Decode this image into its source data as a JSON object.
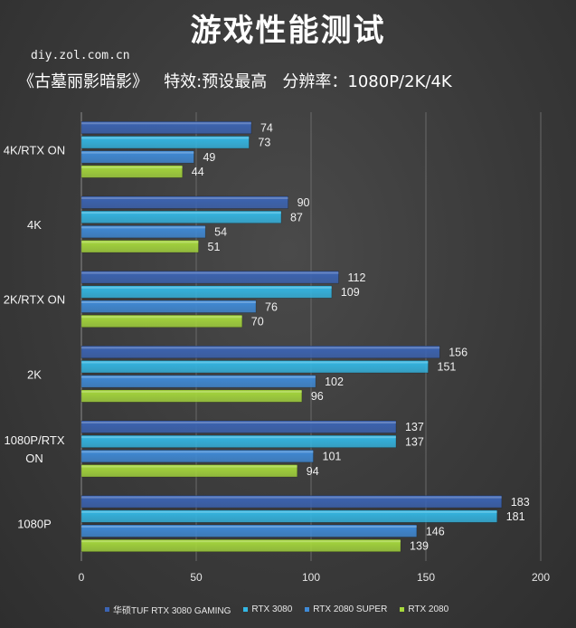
{
  "title": "游戏性能测试",
  "source": "diy.zol.com.cn",
  "subtitle": "《古墓丽影暗影》   特效:预设最高   分辨率：1080P/2K/4K",
  "chart_data": {
    "type": "bar",
    "orientation": "horizontal",
    "categories": [
      "4K/RTX ON",
      "4K",
      "2K/RTX ON",
      "2K",
      "1080P/RTX ON",
      "1080P"
    ],
    "series": [
      {
        "name": "华硕TUF RTX 3080 GAMING",
        "color": "#3b64b4",
        "values": [
          74,
          90,
          112,
          156,
          137,
          183
        ]
      },
      {
        "name": "RTX 3080",
        "color": "#33b7e4",
        "values": [
          73,
          87,
          109,
          151,
          137,
          181
        ]
      },
      {
        "name": "RTX 2080 SUPER",
        "color": "#3f8bd8",
        "values": [
          49,
          54,
          76,
          102,
          101,
          146
        ]
      },
      {
        "name": "RTX 2080",
        "color": "#a6d83c",
        "values": [
          44,
          51,
          70,
          96,
          94,
          139
        ]
      }
    ],
    "xlim": [
      0,
      200
    ],
    "xticks": [
      0,
      50,
      100,
      150,
      200
    ],
    "grid": true,
    "legend_position": "bottom"
  }
}
